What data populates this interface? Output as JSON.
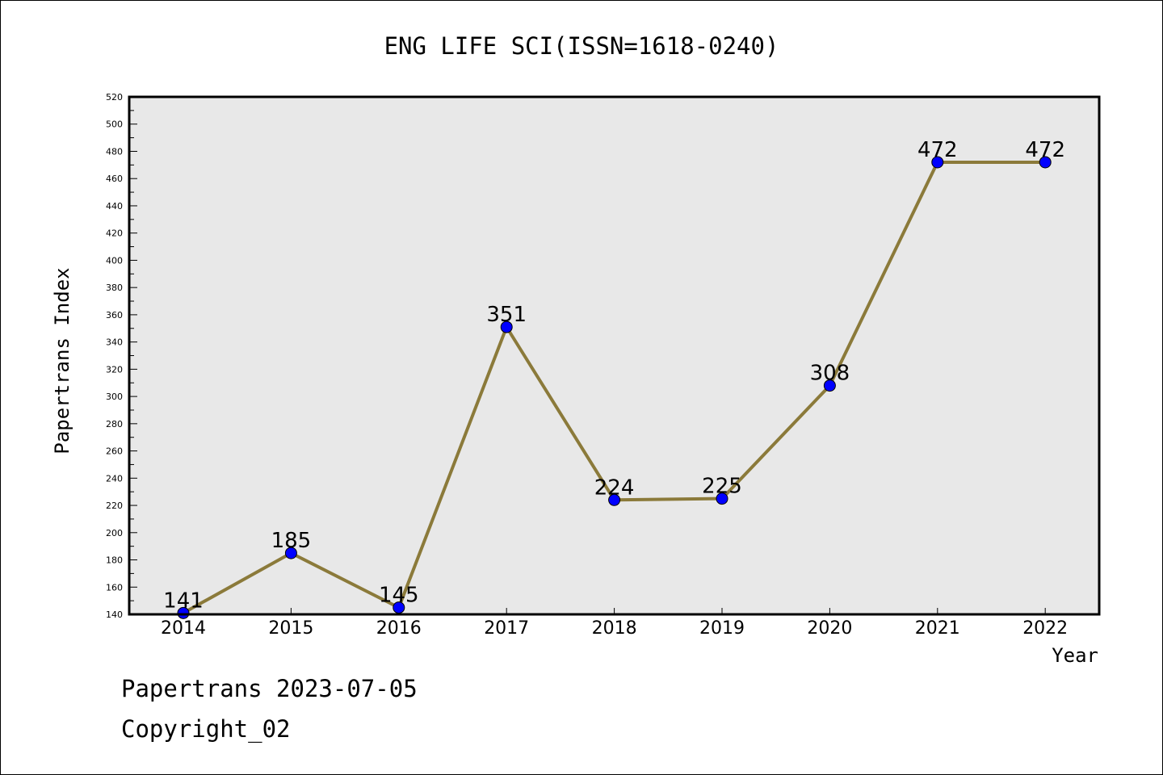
{
  "chart_data": {
    "type": "line",
    "title": "ENG LIFE SCI(ISSN=1618-0240)",
    "xlabel": "Year",
    "ylabel": "Papertrans Index",
    "categories": [
      "2014",
      "2015",
      "2016",
      "2017",
      "2018",
      "2019",
      "2020",
      "2021",
      "2022"
    ],
    "series": [
      {
        "values": [
          141,
          185,
          145,
          351,
          224,
          225,
          308,
          472,
          472
        ]
      }
    ],
    "data_labels": [
      "141",
      "185",
      "145",
      "351",
      "224",
      "225",
      "308",
      "472",
      "472"
    ],
    "ylim": [
      140,
      520
    ],
    "yticks": [
      "140",
      "160",
      "180",
      "200",
      "220",
      "240",
      "260",
      "280",
      "300",
      "320",
      "340",
      "360",
      "380",
      "400",
      "420",
      "440",
      "460",
      "480",
      "500",
      "520"
    ],
    "grid": false,
    "legend": "none",
    "colors": {
      "line": "#8b7a3a",
      "marker": "#0000ff",
      "plot_background": "#e8e8e8",
      "axis": "#000000"
    }
  },
  "footer": {
    "line1": "Papertrans 2023-07-05",
    "line2": "Copyright_02"
  }
}
